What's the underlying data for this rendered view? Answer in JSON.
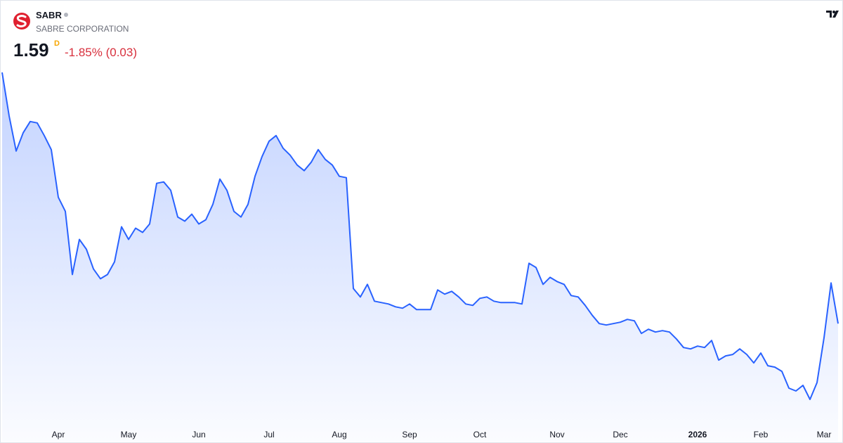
{
  "chart_data": {
    "type": "area",
    "symbol": "SABR",
    "company": "SABRE CORPORATION",
    "price": 1.59,
    "interval": "D",
    "change": "-1.85% (0.03)",
    "color": "#2962ff",
    "categories": [
      null,
      null,
      null,
      null,
      null,
      null,
      null,
      null,
      "Apr",
      null,
      null,
      null,
      null,
      null,
      null,
      null,
      null,
      null,
      "May",
      null,
      null,
      null,
      null,
      null,
      null,
      null,
      null,
      null,
      "Jun",
      null,
      null,
      null,
      null,
      null,
      null,
      null,
      null,
      null,
      "Jul",
      null,
      null,
      null,
      null,
      null,
      null,
      null,
      null,
      null,
      "Aug",
      null,
      null,
      null,
      null,
      null,
      null,
      null,
      null,
      null,
      "Sep",
      null,
      null,
      null,
      null,
      null,
      null,
      null,
      null,
      null,
      "Oct",
      null,
      null,
      null,
      null,
      null,
      null,
      null,
      null,
      null,
      null,
      "Nov",
      null,
      null,
      null,
      null,
      null,
      null,
      null,
      null,
      "Dec",
      null,
      null,
      null,
      null,
      null,
      null,
      null,
      null,
      null,
      null,
      "2026",
      null,
      null,
      null,
      null,
      null,
      null,
      null,
      null,
      "Feb",
      null,
      null,
      null,
      null,
      null,
      null,
      null,
      null,
      "Mar",
      null,
      null
    ],
    "values": [
      3.38,
      3.07,
      2.82,
      2.95,
      3.03,
      3.02,
      2.93,
      2.83,
      2.49,
      2.39,
      1.94,
      2.19,
      2.12,
      1.98,
      1.91,
      1.94,
      2.03,
      2.28,
      2.19,
      2.27,
      2.24,
      2.3,
      2.59,
      2.6,
      2.54,
      2.35,
      2.32,
      2.37,
      2.3,
      2.33,
      2.44,
      2.62,
      2.54,
      2.39,
      2.35,
      2.44,
      2.64,
      2.78,
      2.89,
      2.93,
      2.84,
      2.79,
      2.72,
      2.68,
      2.74,
      2.83,
      2.76,
      2.72,
      2.64,
      2.63,
      1.84,
      1.78,
      1.87,
      1.75,
      1.74,
      1.73,
      1.71,
      1.7,
      1.73,
      1.69,
      1.69,
      1.69,
      1.83,
      1.8,
      1.82,
      1.78,
      1.73,
      1.72,
      1.77,
      1.78,
      1.75,
      1.74,
      1.74,
      1.74,
      1.73,
      2.02,
      1.99,
      1.87,
      1.92,
      1.89,
      1.87,
      1.79,
      1.78,
      1.72,
      1.65,
      1.59,
      1.58,
      1.59,
      1.6,
      1.62,
      1.61,
      1.52,
      1.55,
      1.53,
      1.54,
      1.53,
      1.48,
      1.42,
      1.41,
      1.43,
      1.42,
      1.47,
      1.33,
      1.36,
      1.37,
      1.41,
      1.37,
      1.31,
      1.38,
      1.29,
      1.28,
      1.25,
      1.13,
      1.11,
      1.15,
      1.05,
      1.17,
      1.49,
      1.88,
      1.59
    ]
  }
}
